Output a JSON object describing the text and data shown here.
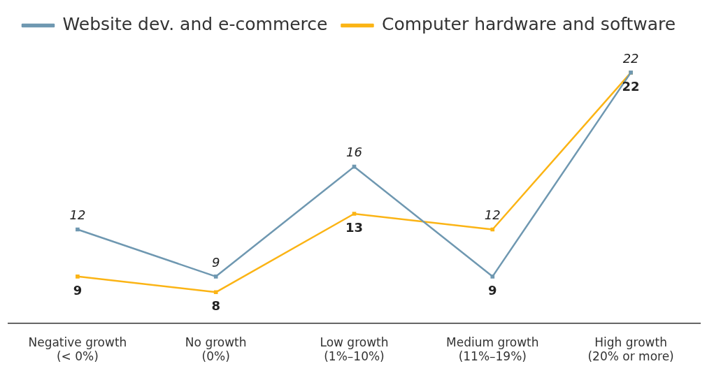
{
  "chart_data": {
    "type": "line",
    "categories": [
      "Negative growth (< 0%)",
      "No growth (0%)",
      "Low growth (1%–10%)",
      "Medium growth (11%–19%)",
      "High growth (20% or more)"
    ],
    "series": [
      {
        "name": "Website dev. and e-commerce",
        "color": "#6f98b1",
        "values": [
          12,
          9,
          16,
          9,
          22
        ]
      },
      {
        "name": "Computer hardware and software",
        "color": "#fbb415",
        "values": [
          9,
          8,
          13,
          12,
          22
        ]
      }
    ],
    "marker": "square",
    "line_style": "solid",
    "data_labels": true,
    "legend": "top left",
    "grid": false,
    "tick_labels": "x"
  }
}
